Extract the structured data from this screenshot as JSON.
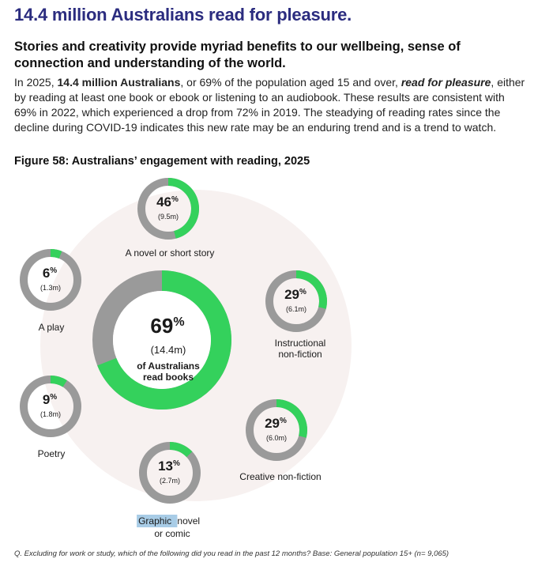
{
  "header": {
    "title": "14.4 million Australians read for pleasure.",
    "subheading": "Stories and creativity provide myriad benefits to our wellbeing, sense of connection and understanding of the world."
  },
  "body": {
    "p1": "In 2025, ",
    "p1_bold": "14.4 million Australians",
    "p2": ", or 69% of the population aged 15 and over, ",
    "p2_bold_italic": "read for pleasure",
    "p3": ", either by reading at least one book or ebook or listening to an audiobook. These results are consistent with 69% in 2022, which experienced a drop from 72% in 2019. The steadying of reading rates since the decline during COVID-19 indicates this new rate may be an enduring trend and is a trend to watch."
  },
  "figure": {
    "title": "Figure 58: Australians’ engagement with reading, 2025"
  },
  "colors": {
    "accent_green": "#34d15c",
    "ring_grey": "#9a9a9a",
    "background_circle": "#f7f1f0",
    "title_navy": "#2b2c7f"
  },
  "chart_data": {
    "type": "pie",
    "center": {
      "value": 69,
      "value_label": "69",
      "unit": "%",
      "count": "(14.4m)",
      "label_line1": "of Australians",
      "label_line2": "read books"
    },
    "categories": [
      {
        "label": "A novel or short story",
        "value": 46,
        "value_label": "46",
        "count": "(9.5m)"
      },
      {
        "label": "Instructional non-fiction",
        "value": 29,
        "value_label": "29",
        "count": "(6.1m)"
      },
      {
        "label": "Creative non-fiction",
        "value": 29,
        "value_label": "29",
        "count": "(6.0m)"
      },
      {
        "label": "Graphic novel or comic",
        "value": 13,
        "value_label": "13",
        "count": "(2.7m)"
      },
      {
        "label": "Poetry",
        "value": 9,
        "value_label": "9",
        "count": "(1.8m)"
      },
      {
        "label": "A play",
        "value": 6,
        "value_label": "6",
        "count": "(1.3m)"
      }
    ]
  },
  "footnote": "Q. Excluding for work or study, which of the following did you read in the past 12 months? Base: General population 15+ (n= 9,065)"
}
